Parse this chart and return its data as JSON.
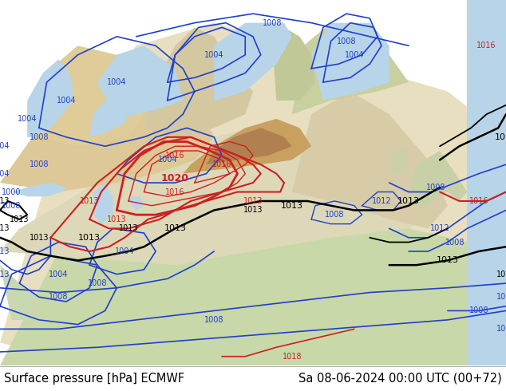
{
  "title_left": "Surface pressure [hPa] ECMWF",
  "title_right": "Sa 08-06-2024 00:00 UTC (00+72)",
  "bg_ocean": "#b8d4e8",
  "bg_land_low": "#e8dfc0",
  "bg_land_green": "#c8d8a8",
  "bg_land_brown_light": "#d4b888",
  "bg_land_brown_mid": "#c8a060",
  "bg_land_brown_dark": "#b08050",
  "bg_land_red_brown": "#c07050",
  "text_color": "#000000",
  "title_fontsize": 10.5,
  "figsize": [
    6.34,
    4.9
  ],
  "dpi": 100,
  "blue": "#2040cc",
  "black": "#000000",
  "red": "#cc2020"
}
